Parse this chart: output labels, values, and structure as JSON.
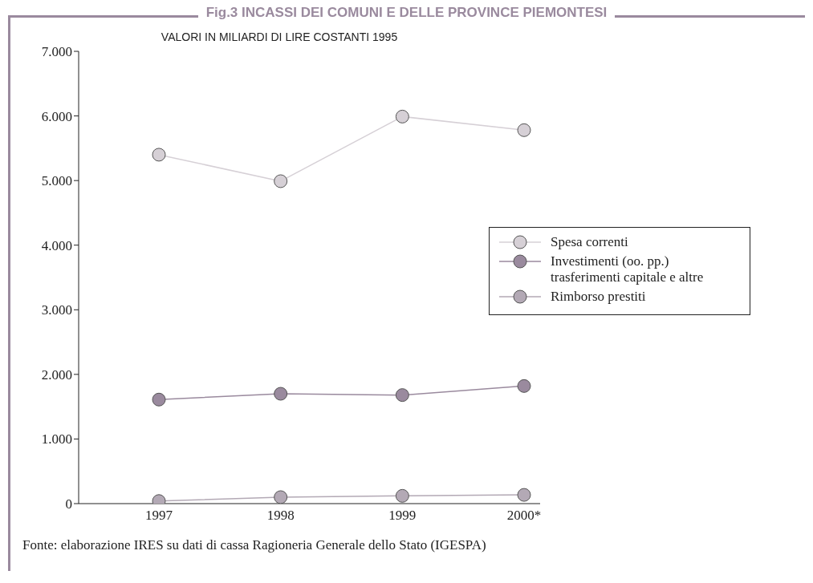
{
  "chart_data": {
    "type": "line",
    "title": "Fig.3 INCASSI DEI COMUNI E DELLE PROVINCE PIEMONTESI",
    "subtitle": "VALORI IN MILIARDI DI LIRE COSTANTI 1995",
    "categories": [
      "1997",
      "1998",
      "1999",
      "2000*"
    ],
    "series": [
      {
        "name": "Spesa correnti",
        "color": "#d6d0d6",
        "values": [
          5400,
          4990,
          5990,
          5780
        ]
      },
      {
        "name": "Investimenti (oo. pp.) trasferimenti capitale e altre",
        "color": "#9a8a9e",
        "values": [
          1610,
          1700,
          1680,
          1820
        ]
      },
      {
        "name": "Rimborso prestiti",
        "color": "#b3a9b5",
        "values": [
          40,
          100,
          120,
          135
        ]
      }
    ],
    "ylim": [
      0,
      7000
    ],
    "yticks": [
      {
        "value": 0,
        "label": "0"
      },
      {
        "value": 1000,
        "label": "1.000"
      },
      {
        "value": 2000,
        "label": "2.000"
      },
      {
        "value": 3000,
        "label": "3.000"
      },
      {
        "value": 4000,
        "label": "4.000"
      },
      {
        "value": 5000,
        "label": "5.000"
      },
      {
        "value": 6000,
        "label": "6.000"
      },
      {
        "value": 7000,
        "label": "7.000"
      }
    ],
    "grid": false,
    "legend": "right",
    "marker": "circle",
    "line_style": "solid",
    "annotations": [
      "Fonte: elaborazione IRES su dati di cassa Ragioneria Generale dello Stato (IGESPA)"
    ]
  }
}
